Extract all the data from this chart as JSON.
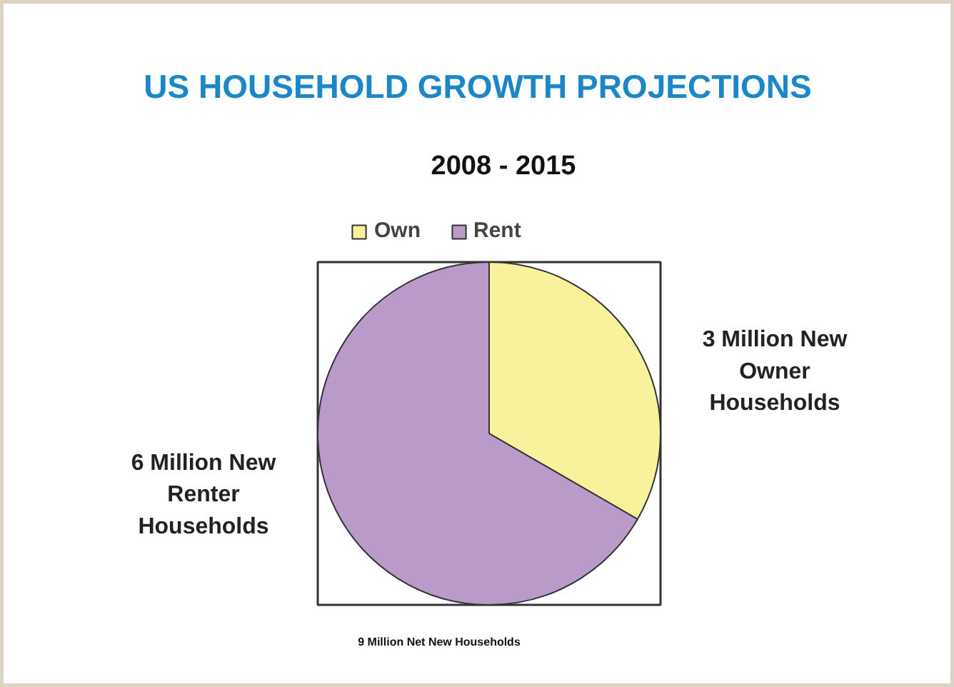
{
  "chart_data": {
    "type": "pie",
    "title": "US HOUSEHOLD GROWTH PROJECTIONS",
    "subtitle": "2008 - 2015",
    "categories": [
      "Own",
      "Rent"
    ],
    "values": [
      3,
      6
    ],
    "colors": [
      "#f8f29c",
      "#b99ac9"
    ],
    "value_labels": [
      "3 Million New\nOwner\nHouseholds",
      "6 Million New\nRenter\nHouseholds"
    ],
    "legend": "top",
    "annotations": [
      "9 Million Net New Households"
    ]
  }
}
